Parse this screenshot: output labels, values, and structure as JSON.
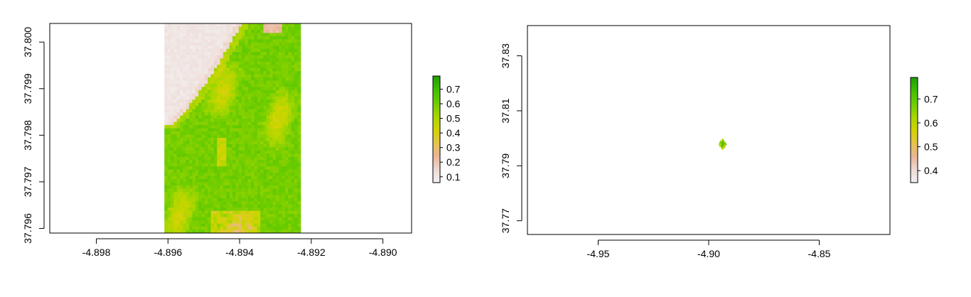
{
  "chart_data": [
    {
      "type": "heatmap",
      "title": "",
      "xlabel": "",
      "ylabel": "",
      "xlim": [
        -4.8993,
        -4.8892
      ],
      "ylim": [
        37.7959,
        37.8004
      ],
      "x_ticks": [
        "-4.898",
        "-4.896",
        "-4.894",
        "-4.892",
        "-4.890"
      ],
      "x_tick_values": [
        -4.898,
        -4.896,
        -4.894,
        -4.892,
        -4.89
      ],
      "y_ticks": [
        "37.796",
        "37.797",
        "37.798",
        "37.799",
        "37.800"
      ],
      "y_tick_values": [
        37.796,
        37.797,
        37.798,
        37.799,
        37.8
      ],
      "raster_extent": {
        "xmin": -4.8961,
        "xmax": -4.8923,
        "ymin": 37.7959,
        "ymax": 37.8004
      },
      "legend": {
        "position": "right",
        "ticks": [
          "0.1",
          "0.2",
          "0.3",
          "0.4",
          "0.5",
          "0.6",
          "0.7"
        ],
        "tick_values": [
          0.1,
          0.2,
          0.3,
          0.4,
          0.5,
          0.6,
          0.7
        ],
        "range": [
          0.06,
          0.79
        ]
      }
    },
    {
      "type": "heatmap",
      "title": "",
      "xlabel": "",
      "ylabel": "",
      "xlim": [
        -4.982,
        -4.818
      ],
      "ylim": [
        37.765,
        37.841
      ],
      "x_ticks": [
        "-4.95",
        "-4.90",
        "-4.85"
      ],
      "x_tick_values": [
        -4.95,
        -4.9,
        -4.85
      ],
      "y_ticks": [
        "37.77",
        "37.79",
        "37.81",
        "37.83"
      ],
      "y_tick_values": [
        37.77,
        37.79,
        37.81,
        37.83
      ],
      "raster_center": {
        "x": -4.8942,
        "y": 37.7982
      },
      "legend": {
        "position": "right",
        "ticks": [
          "0.4",
          "0.5",
          "0.6",
          "0.7"
        ],
        "tick_values": [
          0.4,
          0.5,
          0.6,
          0.7
        ],
        "range": [
          0.35,
          0.79
        ]
      }
    }
  ],
  "colors": {
    "ramp": [
      "#f2f2f2",
      "#eed8d3",
      "#ebb594",
      "#e4c449",
      "#d2d400",
      "#a6d600",
      "#6ccc00",
      "#3fbf00",
      "#1f9e00"
    ],
    "axis": "#000000"
  }
}
